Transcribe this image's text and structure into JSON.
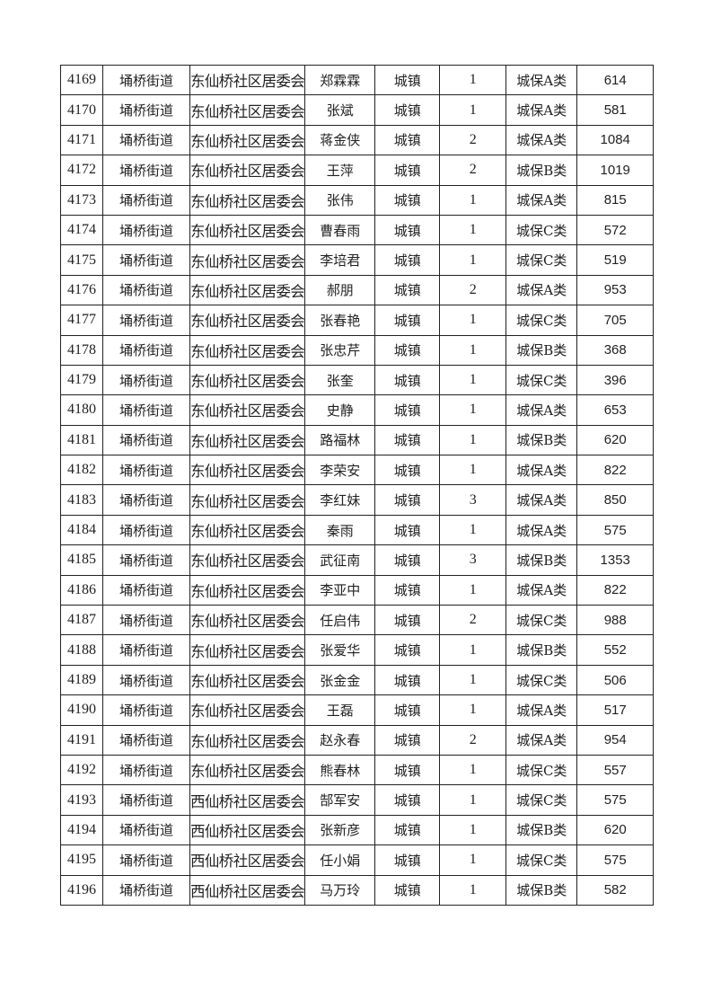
{
  "table": {
    "rows": [
      [
        "4169",
        "埇桥街道",
        "东仙桥社区居委会",
        "郑霖霖",
        "城镇",
        "1",
        "城保A类",
        "614"
      ],
      [
        "4170",
        "埇桥街道",
        "东仙桥社区居委会",
        "张斌",
        "城镇",
        "1",
        "城保A类",
        "581"
      ],
      [
        "4171",
        "埇桥街道",
        "东仙桥社区居委会",
        "蒋金侠",
        "城镇",
        "2",
        "城保A类",
        "1084"
      ],
      [
        "4172",
        "埇桥街道",
        "东仙桥社区居委会",
        "王萍",
        "城镇",
        "2",
        "城保B类",
        "1019"
      ],
      [
        "4173",
        "埇桥街道",
        "东仙桥社区居委会",
        "张伟",
        "城镇",
        "1",
        "城保A类",
        "815"
      ],
      [
        "4174",
        "埇桥街道",
        "东仙桥社区居委会",
        "曹春雨",
        "城镇",
        "1",
        "城保C类",
        "572"
      ],
      [
        "4175",
        "埇桥街道",
        "东仙桥社区居委会",
        "李培君",
        "城镇",
        "1",
        "城保C类",
        "519"
      ],
      [
        "4176",
        "埇桥街道",
        "东仙桥社区居委会",
        "郝朋",
        "城镇",
        "2",
        "城保A类",
        "953"
      ],
      [
        "4177",
        "埇桥街道",
        "东仙桥社区居委会",
        "张春艳",
        "城镇",
        "1",
        "城保C类",
        "705"
      ],
      [
        "4178",
        "埇桥街道",
        "东仙桥社区居委会",
        "张忠芹",
        "城镇",
        "1",
        "城保B类",
        "368"
      ],
      [
        "4179",
        "埇桥街道",
        "东仙桥社区居委会",
        "张奎",
        "城镇",
        "1",
        "城保C类",
        "396"
      ],
      [
        "4180",
        "埇桥街道",
        "东仙桥社区居委会",
        "史静",
        "城镇",
        "1",
        "城保A类",
        "653"
      ],
      [
        "4181",
        "埇桥街道",
        "东仙桥社区居委会",
        "路福林",
        "城镇",
        "1",
        "城保B类",
        "620"
      ],
      [
        "4182",
        "埇桥街道",
        "东仙桥社区居委会",
        "李荣安",
        "城镇",
        "1",
        "城保A类",
        "822"
      ],
      [
        "4183",
        "埇桥街道",
        "东仙桥社区居委会",
        "李红妹",
        "城镇",
        "3",
        "城保A类",
        "850"
      ],
      [
        "4184",
        "埇桥街道",
        "东仙桥社区居委会",
        "秦雨",
        "城镇",
        "1",
        "城保A类",
        "575"
      ],
      [
        "4185",
        "埇桥街道",
        "东仙桥社区居委会",
        "武征南",
        "城镇",
        "3",
        "城保B类",
        "1353"
      ],
      [
        "4186",
        "埇桥街道",
        "东仙桥社区居委会",
        "李亚中",
        "城镇",
        "1",
        "城保A类",
        "822"
      ],
      [
        "4187",
        "埇桥街道",
        "东仙桥社区居委会",
        "任启伟",
        "城镇",
        "2",
        "城保C类",
        "988"
      ],
      [
        "4188",
        "埇桥街道",
        "东仙桥社区居委会",
        "张爱华",
        "城镇",
        "1",
        "城保B类",
        "552"
      ],
      [
        "4189",
        "埇桥街道",
        "东仙桥社区居委会",
        "张金金",
        "城镇",
        "1",
        "城保C类",
        "506"
      ],
      [
        "4190",
        "埇桥街道",
        "东仙桥社区居委会",
        "王磊",
        "城镇",
        "1",
        "城保A类",
        "517"
      ],
      [
        "4191",
        "埇桥街道",
        "东仙桥社区居委会",
        "赵永春",
        "城镇",
        "2",
        "城保A类",
        "954"
      ],
      [
        "4192",
        "埇桥街道",
        "东仙桥社区居委会",
        "熊春林",
        "城镇",
        "1",
        "城保C类",
        "557"
      ],
      [
        "4193",
        "埇桥街道",
        "西仙桥社区居委会",
        "郜军安",
        "城镇",
        "1",
        "城保C类",
        "575"
      ],
      [
        "4194",
        "埇桥街道",
        "西仙桥社区居委会",
        "张新彦",
        "城镇",
        "1",
        "城保B类",
        "620"
      ],
      [
        "4195",
        "埇桥街道",
        "西仙桥社区居委会",
        "任小娟",
        "城镇",
        "1",
        "城保C类",
        "575"
      ],
      [
        "4196",
        "埇桥街道",
        "西仙桥社区居委会",
        "马万玲",
        "城镇",
        "1",
        "城保B类",
        "582"
      ]
    ]
  }
}
